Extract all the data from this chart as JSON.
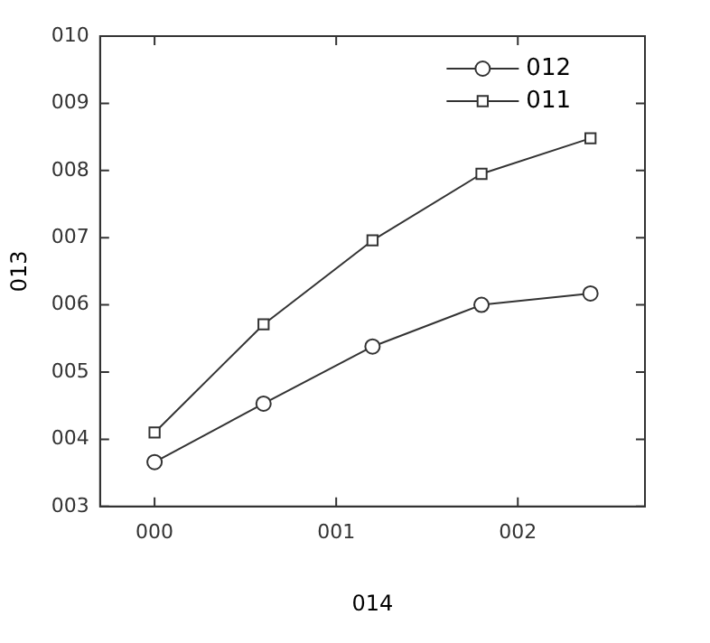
{
  "chart_data": {
    "type": "line",
    "xlabel": "014",
    "ylabel": "013",
    "x": [
      0,
      0.6,
      1.2,
      1.8,
      2.4
    ],
    "series": [
      {
        "name": "012",
        "color": "#333333",
        "marker": "circle",
        "values": [
          3.66,
          4.53,
          5.38,
          6.0,
          6.17
        ]
      },
      {
        "name": "011",
        "color": "#333333",
        "marker": "square",
        "values": [
          4.1,
          5.71,
          6.96,
          7.95,
          8.48
        ]
      }
    ],
    "xlim": [
      -0.3,
      2.7
    ],
    "xticks": [
      {
        "value": 0,
        "label": "000"
      },
      {
        "value": 1,
        "label": "001"
      },
      {
        "value": 2,
        "label": "002"
      }
    ],
    "ylim": [
      3,
      10
    ],
    "yticks": [
      {
        "value": 3,
        "label": "003"
      },
      {
        "value": 4,
        "label": "004"
      },
      {
        "value": 5,
        "label": "005"
      },
      {
        "value": 6,
        "label": "006"
      },
      {
        "value": 7,
        "label": "007"
      },
      {
        "value": 8,
        "label": "008"
      },
      {
        "value": 9,
        "label": "009"
      },
      {
        "value": 10,
        "label": "010"
      }
    ],
    "grid": false,
    "legend": "top right",
    "line_style": "solid"
  }
}
